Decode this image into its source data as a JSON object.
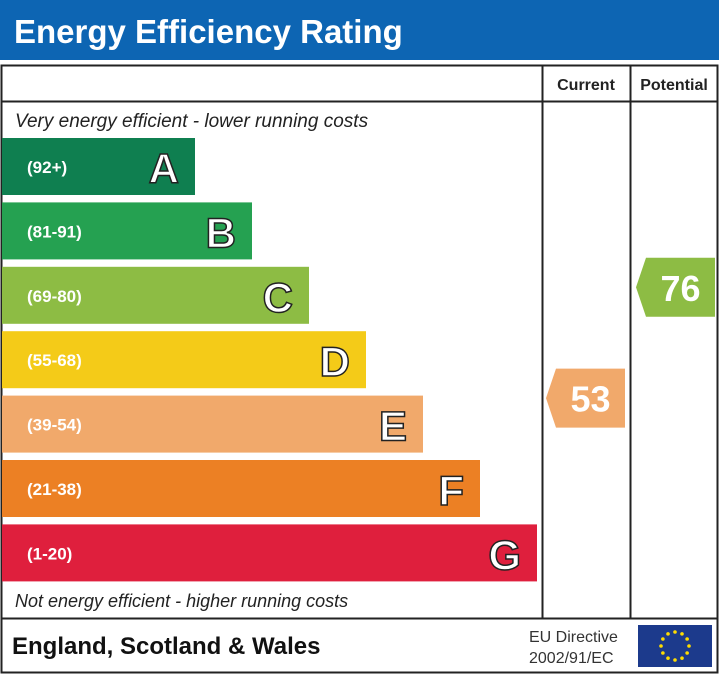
{
  "title": "Energy Efficiency Rating",
  "colors": {
    "header": "#0d65b3",
    "border": "#222222"
  },
  "chart_data": {
    "type": "bar",
    "columns": [
      "Current",
      "Potential"
    ],
    "top_note": "Very energy efficient - lower running costs",
    "bottom_note": "Not energy efficient - higher running costs",
    "bands": [
      {
        "letter": "A",
        "range": "(92+)",
        "color": "#0f7f50"
      },
      {
        "letter": "B",
        "range": "(81-91)",
        "color": "#25a151"
      },
      {
        "letter": "C",
        "range": "(69-80)",
        "color": "#8dbc44"
      },
      {
        "letter": "D",
        "range": "(55-68)",
        "color": "#f4cb18"
      },
      {
        "letter": "E",
        "range": "(39-54)",
        "color": "#f1a96b"
      },
      {
        "letter": "F",
        "range": "(21-38)",
        "color": "#ec8024"
      },
      {
        "letter": "G",
        "range": "(1-20)",
        "color": "#df1f3d"
      }
    ],
    "current": {
      "value": "53",
      "band": "E",
      "color": "#f1a96b"
    },
    "potential": {
      "value": "76",
      "band": "C",
      "color": "#8dbc44"
    }
  },
  "footer": {
    "region": "England, Scotland & Wales",
    "directive_line1": "EU Directive",
    "directive_line2": "2002/91/EC"
  }
}
